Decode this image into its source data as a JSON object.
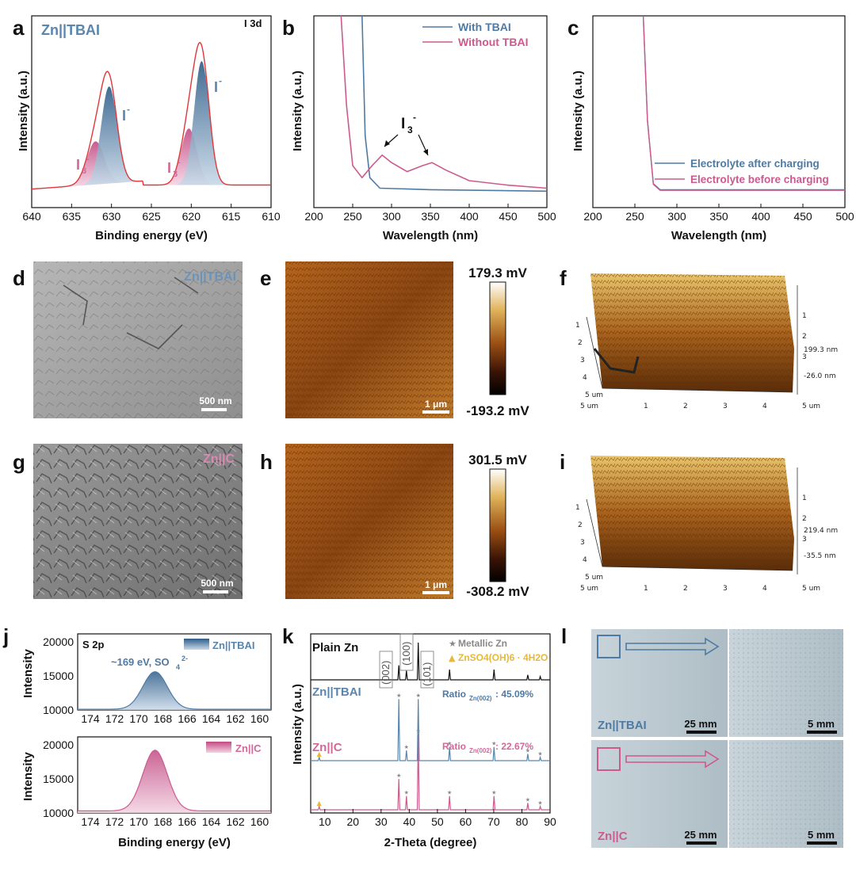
{
  "figure": {
    "panel_labels": [
      "a",
      "b",
      "c",
      "d",
      "e",
      "f",
      "g",
      "h",
      "i",
      "j",
      "k",
      "l"
    ],
    "colors": {
      "blue": "#4f7aa3",
      "pink": "#cc5a8e",
      "red": "#e0383a",
      "yellow": "#e6b93a",
      "gray": "#888888"
    }
  },
  "a": {
    "title": "Zn||TBAI",
    "region": "I 3d",
    "ylabel": "Intensity (a.u.)",
    "xlabel": "Binding energy (eV)",
    "xticks": [
      "640",
      "635",
      "630",
      "625",
      "620",
      "615",
      "610"
    ],
    "peak_labels": {
      "i_minus_1": "I",
      "i_minus_sup": "-",
      "i3_1": "I",
      "i3_sub": "3",
      "i3_sup": "-"
    }
  },
  "b": {
    "ylabel": "Intensity (a.u.)",
    "xlabel": "Wavelength (nm)",
    "xticks": [
      "200",
      "250",
      "300",
      "350",
      "400",
      "450",
      "500"
    ],
    "legend": [
      "With TBAI",
      "Without TBAI"
    ],
    "annot": {
      "base": "I",
      "sub": "3",
      "sup": "-"
    }
  },
  "c": {
    "ylabel": "Intensity (a.u.)",
    "xlabel": "Wavelength (nm)",
    "xticks": [
      "200",
      "250",
      "300",
      "350",
      "400",
      "450",
      "500"
    ],
    "legend": [
      "Electrolyte after charging",
      "Electrolyte before charging"
    ]
  },
  "d": {
    "label": "Zn||TBAI",
    "scale": "500 nm"
  },
  "e": {
    "scale": "1 μm",
    "max": "179.3 mV",
    "min": "-193.2 mV"
  },
  "f": {
    "z_top": "199.3 nm",
    "z_bot": "-26.0 nm",
    "ticks_axis": [
      "1",
      "2",
      "3",
      "4",
      "5 um"
    ],
    "ticks_x": [
      "1",
      "2",
      "3",
      "4",
      "5 um"
    ],
    "origin": "5 um"
  },
  "g": {
    "label": "Zn||C",
    "scale": "500 nm"
  },
  "h": {
    "scale": "1 μm",
    "max": "301.5 mV",
    "min": "-308.2 mV"
  },
  "i": {
    "z_top": "219.4 nm",
    "z_bot": "-35.5 nm",
    "ticks_axis": [
      "1",
      "2",
      "3",
      "4",
      "5 um"
    ],
    "ticks_x": [
      "1",
      "2",
      "3",
      "4",
      "5 um"
    ],
    "origin": "5 um"
  },
  "j": {
    "region": "S 2p",
    "ylabel": "Intensity",
    "xlabel": "Binding energy (eV)",
    "xticks": [
      "174",
      "172",
      "170",
      "168",
      "166",
      "164",
      "162",
      "160"
    ],
    "top_yticks": [
      "20000",
      "15000",
      "10000"
    ],
    "bot_yticks": [
      "20000",
      "15000",
      "10000"
    ],
    "legend_top": "Zn||TBAI",
    "legend_bot": "Zn||C",
    "annot": "~169 eV, SO",
    "annot_sub": "4",
    "annot_sup": "2-"
  },
  "k": {
    "ylabel": "Intensity (a.u.)",
    "xlabel": "2-Theta (degree)",
    "xticks": [
      "10",
      "20",
      "30",
      "40",
      "50",
      "60",
      "70",
      "80",
      "90"
    ],
    "row_labels": [
      "Plain Zn",
      "Zn||TBAI",
      "Zn||C"
    ],
    "legend": [
      "Metallic Zn",
      "ZnSO4(OH)6 · 4H2O"
    ],
    "planes": [
      "(002)",
      "(100)",
      "(101)"
    ],
    "ratio_tbai": "Ratio",
    "ratio_tbai_sub": "Zn(002)",
    "ratio_tbai_val": ": 45.09%",
    "ratio_c": "Ratio",
    "ratio_c_sub": "Zn(002)",
    "ratio_c_val": ": 22.67%"
  },
  "l": {
    "top_label": "Zn||TBAI",
    "bot_label": "Zn||C",
    "scale_big": "25 mm",
    "scale_small": "5 mm"
  },
  "chart_data": [
    {
      "type": "line",
      "panel": "a",
      "title": "Zn||TBAI I 3d",
      "xlabel": "Binding energy (eV)",
      "ylabel": "Intensity (a.u.)",
      "xlim": [
        640,
        610
      ],
      "series": [
        {
          "name": "envelope",
          "peaks": [
            {
              "center": 630.3,
              "height": 0.72,
              "sigma": 1.0
            },
            {
              "center": 632.0,
              "height": 0.32,
              "sigma": 1.1
            },
            {
              "center": 618.7,
              "height": 0.92,
              "sigma": 0.95
            },
            {
              "center": 620.3,
              "height": 0.42,
              "sigma": 1.0
            }
          ]
        }
      ]
    },
    {
      "type": "line",
      "panel": "b",
      "xlabel": "Wavelength (nm)",
      "ylabel": "Intensity (a.u.)",
      "xlim": [
        200,
        500
      ],
      "series": [
        {
          "name": "With TBAI",
          "points": [
            [
              262,
              1.2
            ],
            [
              266,
              0.4
            ],
            [
              272,
              0.12
            ],
            [
              285,
              0.05
            ],
            [
              350,
              0.04
            ],
            [
              500,
              0.03
            ]
          ]
        },
        {
          "name": "Without TBAI",
          "points": [
            [
              235,
              1.2
            ],
            [
              242,
              0.6
            ],
            [
              250,
              0.2
            ],
            [
              262,
              0.12
            ],
            [
              275,
              0.2
            ],
            [
              288,
              0.27
            ],
            [
              300,
              0.22
            ],
            [
              320,
              0.16
            ],
            [
              340,
              0.2
            ],
            [
              352,
              0.22
            ],
            [
              370,
              0.17
            ],
            [
              400,
              0.1
            ],
            [
              450,
              0.07
            ],
            [
              500,
              0.05
            ]
          ]
        }
      ]
    },
    {
      "type": "line",
      "panel": "c",
      "xlabel": "Wavelength (nm)",
      "ylabel": "Intensity (a.u.)",
      "xlim": [
        200,
        500
      ],
      "series": [
        {
          "name": "Electrolyte after charging",
          "points": [
            [
              260,
              1.2
            ],
            [
              265,
              0.5
            ],
            [
              272,
              0.08
            ],
            [
              280,
              0.04
            ],
            [
              500,
              0.04
            ]
          ]
        },
        {
          "name": "Electrolyte before charging",
          "points": [
            [
              260,
              1.2
            ],
            [
              265,
              0.5
            ],
            [
              272,
              0.08
            ],
            [
              280,
              0.04
            ],
            [
              500,
              0.04
            ]
          ]
        }
      ]
    },
    {
      "type": "line",
      "panel": "j",
      "xlabel": "Binding energy (eV)",
      "ylabel": "Intensity",
      "xlim": [
        175,
        160
      ],
      "series": [
        {
          "name": "Zn||TBAI",
          "center": 169.0,
          "peak": 15600,
          "base": 10100,
          "sigma": 0.95
        },
        {
          "name": "Zn||C",
          "center": 169.0,
          "peak": 19200,
          "base": 10300,
          "sigma": 0.95
        }
      ]
    },
    {
      "type": "line",
      "panel": "k",
      "xlabel": "2-Theta (degree)",
      "ylabel": "Intensity (a.u.)",
      "xlim": [
        5,
        90
      ],
      "series": [
        {
          "name": "Plain Zn",
          "peaks": [
            [
              36.3,
              0.35
            ],
            [
              39.0,
              0.22
            ],
            [
              43.2,
              0.9
            ],
            [
              54.3,
              0.25
            ],
            [
              70.1,
              0.25
            ],
            [
              82.1,
              0.12
            ],
            [
              86.5,
              0.08
            ]
          ]
        },
        {
          "name": "Zn||TBAI",
          "peaks": [
            [
              8.0,
              0.05
            ],
            [
              36.3,
              0.9
            ],
            [
              39.0,
              0.15
            ],
            [
              43.2,
              0.9
            ],
            [
              54.3,
              0.2
            ],
            [
              70.1,
              0.2
            ],
            [
              82.1,
              0.1
            ],
            [
              86.5,
              0.05
            ]
          ]
        },
        {
          "name": "Zn||C",
          "peaks": [
            [
              8.0,
              0.05
            ],
            [
              36.3,
              0.45
            ],
            [
              39.0,
              0.2
            ],
            [
              43.2,
              1.1
            ],
            [
              54.3,
              0.2
            ],
            [
              70.1,
              0.2
            ],
            [
              82.1,
              0.1
            ],
            [
              86.5,
              0.05
            ]
          ]
        }
      ]
    }
  ]
}
